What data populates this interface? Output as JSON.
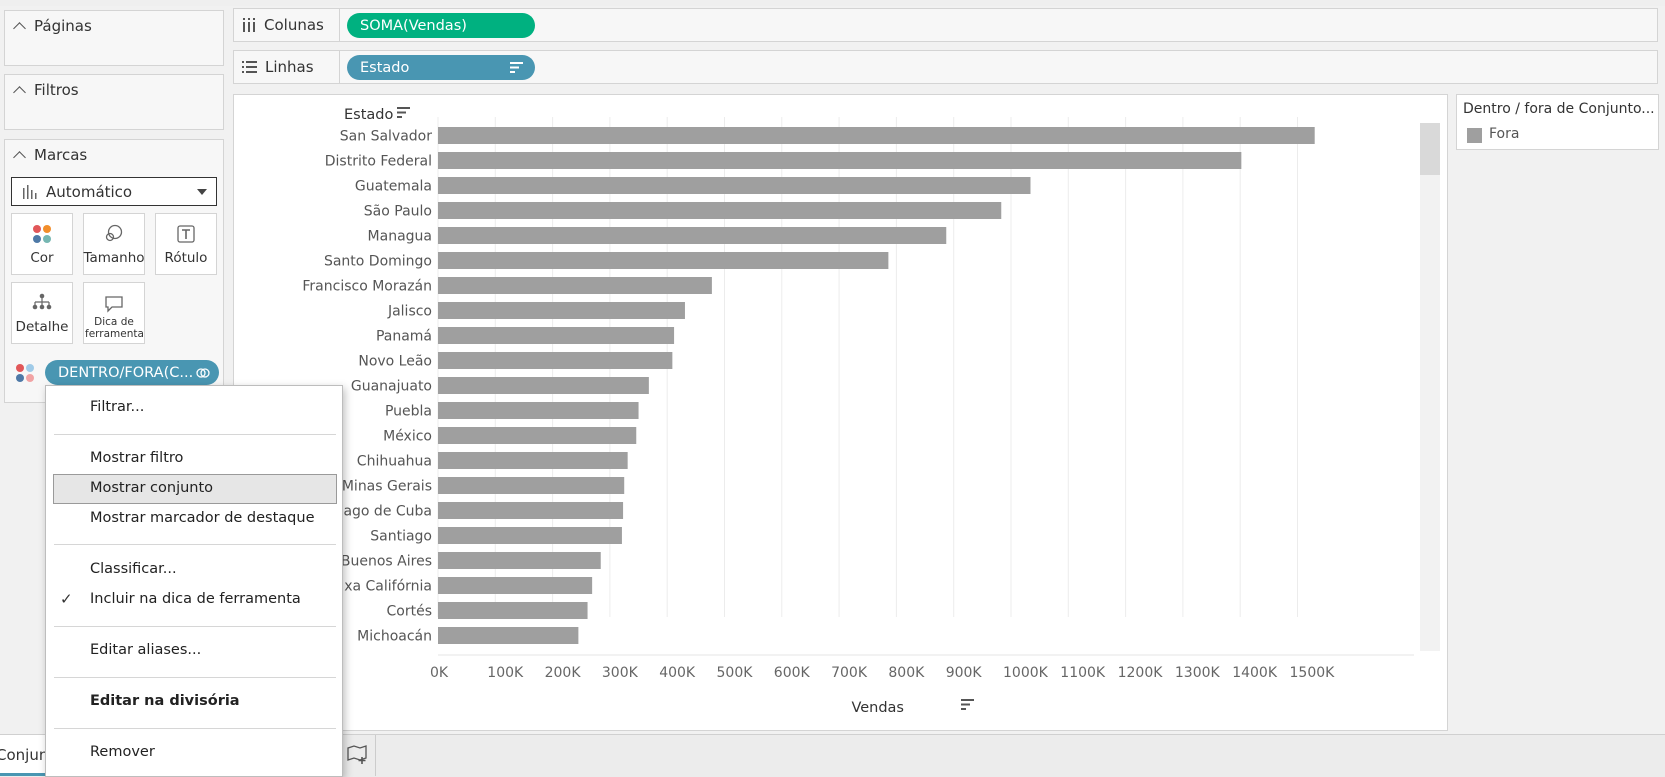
{
  "left_panel": {
    "pages_title": "Páginas",
    "filters_title": "Filtros",
    "marks_title": "Marcas",
    "mark_type": "Automático",
    "buttons": {
      "color": "Cor",
      "size": "Tamanho",
      "label": "Rótulo",
      "detail": "Detalhe",
      "tooltip": "Dica de ferramenta"
    },
    "color_pill": "DENTRO/FORA(C..."
  },
  "shelves": {
    "columns_label": "Colunas",
    "columns_pill": "SOMA(Vendas)",
    "rows_label": "Linhas",
    "rows_pill": "Estado"
  },
  "legend": {
    "title": "Dentro / fora de Conjunto...",
    "item": "Fora",
    "item_color": "#9f9f9f"
  },
  "chart_data": {
    "type": "bar",
    "orientation": "horizontal",
    "row_header": "Estado",
    "xlabel": "Vendas",
    "categories": [
      "San Salvador",
      "Distrito Federal",
      "Guatemala",
      "São Paulo",
      "Managua",
      "Santo Domingo",
      "Francisco Morazán",
      "Jalisco",
      "Panamá",
      "Novo Leão",
      "Guanajuato",
      "Puebla",
      "México",
      "Chihuahua",
      "Minas Gerais",
      "Santiago de Cuba",
      "Santiago",
      "Buenos Aires",
      "Baixa Califórnia",
      "Cortés",
      "Michoacán"
    ],
    "visible_labels": [
      "San Salvador",
      "Distrito Federal",
      "Guatemala",
      "São Paulo",
      "Managua",
      "Santo Domingo",
      "Francisco Morazán",
      "Jalisco",
      "Panamá",
      "Novo Leão",
      "Guanajuato",
      "Puebla",
      "México",
      "Chihuahua",
      "Minas Gerais",
      "iago de Cuba",
      "Santiago",
      "Buenos Aires",
      "xa Califórnia",
      "Cortés",
      "Michoacán"
    ],
    "values": [
      1530000,
      1402000,
      1034000,
      983000,
      887000,
      786000,
      478000,
      431000,
      412000,
      409000,
      368000,
      350000,
      346000,
      331000,
      325000,
      323000,
      321000,
      284000,
      269000,
      261000,
      245000
    ],
    "xlim": [
      0,
      1600000
    ],
    "ticks": [
      "0K",
      "100K",
      "200K",
      "300K",
      "400K",
      "500K",
      "600K",
      "700K",
      "800K",
      "900K",
      "1000K",
      "1100K",
      "1200K",
      "1300K",
      "1400K",
      "1500K"
    ],
    "bar_color": "#9f9f9f",
    "grid": true
  },
  "context_menu": {
    "filter": "Filtrar...",
    "show_filter": "Mostrar filtro",
    "show_set": "Mostrar conjunto",
    "show_highlighter": "Mostrar marcador de destaque",
    "sort": "Classificar...",
    "include_tooltip": "Incluir na dica de ferramenta",
    "include_tooltip_check": "✓",
    "edit_aliases": "Editar aliases...",
    "edit_shelf": "Editar na divisória",
    "remove": "Remover"
  },
  "bottom": {
    "sheet_tab": "Conjunto"
  }
}
